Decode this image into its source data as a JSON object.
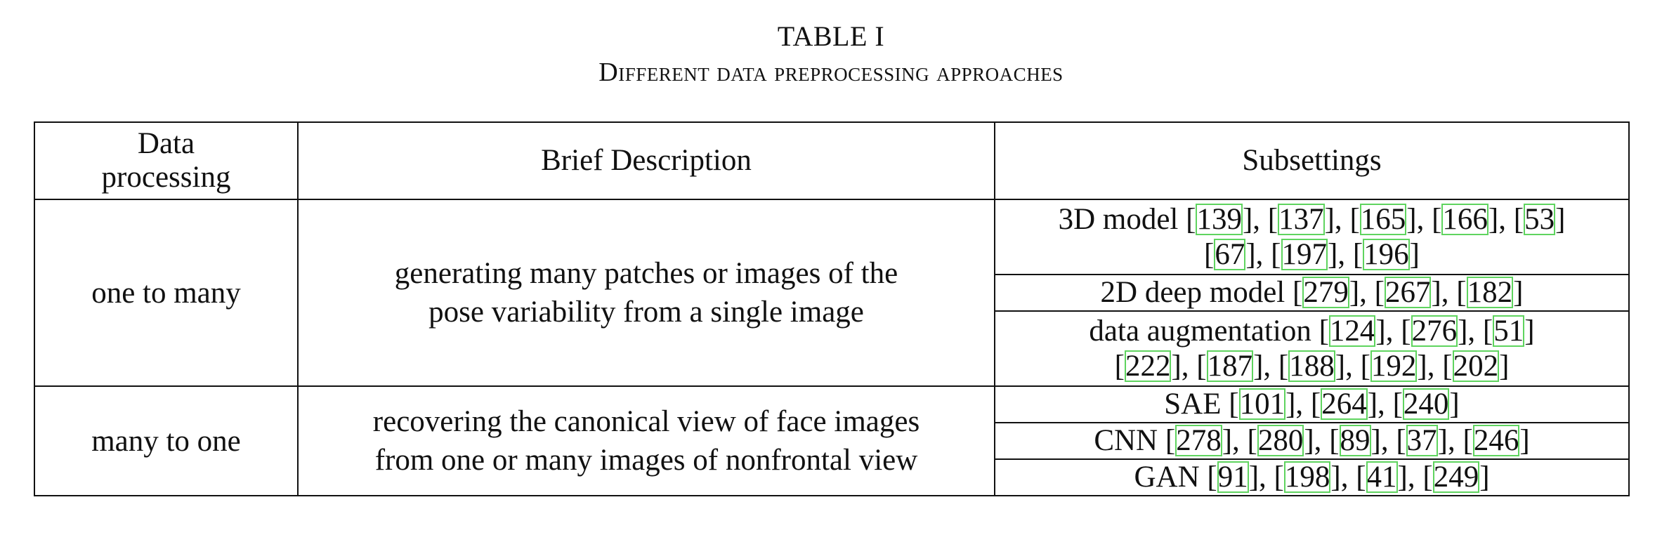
{
  "caption": {
    "label": "TABLE I",
    "title": "Different data preprocessing approaches"
  },
  "header": {
    "col1": [
      "Data",
      "processing"
    ],
    "col2": "Brief Description",
    "col3": "Subsettings"
  },
  "groups": [
    {
      "name": "one to many",
      "description": [
        "generating many patches or images of the",
        "pose variability from a single image"
      ],
      "subsettings": [
        {
          "label": "3D model",
          "lines": [
            [
              "139",
              "137",
              "165",
              "166",
              "53"
            ],
            [
              "67",
              "197",
              "196"
            ]
          ]
        },
        {
          "label": "2D deep model",
          "lines": [
            [
              "279",
              "267",
              "182"
            ]
          ]
        },
        {
          "label": "data augmentation",
          "lines": [
            [
              "124",
              "276",
              "51"
            ],
            [
              "222",
              "187",
              "188",
              "192",
              "202"
            ]
          ]
        }
      ]
    },
    {
      "name": "many to one",
      "description": [
        "recovering the canonical view of face images",
        "from one or many images of nonfrontal view"
      ],
      "subsettings": [
        {
          "label": "SAE",
          "lines": [
            [
              "101",
              "264",
              "240"
            ]
          ]
        },
        {
          "label": "CNN",
          "lines": [
            [
              "278",
              "280",
              "89",
              "37",
              "246"
            ]
          ]
        },
        {
          "label": "GAN",
          "lines": [
            [
              "91",
              "198",
              "41",
              "249"
            ]
          ]
        }
      ]
    }
  ]
}
